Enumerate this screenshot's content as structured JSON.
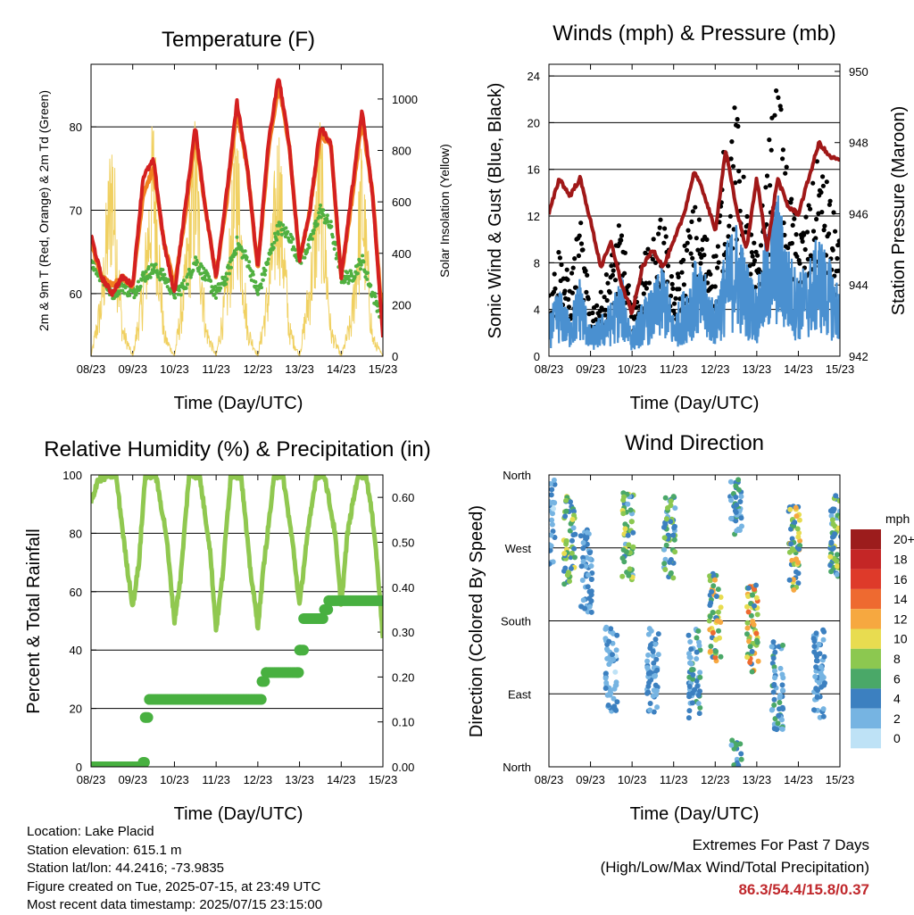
{
  "shared": {
    "xlabel": "Time (Day/UTC)",
    "xticks": [
      "08/23",
      "09/23",
      "10/23",
      "11/23",
      "12/23",
      "13/23",
      "14/23",
      "15/23"
    ]
  },
  "info": {
    "location": "Location: Lake Placid",
    "elevation": "Station elevation: 615.1 m",
    "latlon": "Station lat/lon: 44.2416; -73.9835",
    "created": "Figure created on Tue, 2025-07-15, at 23:49 UTC",
    "recent": "Most recent data timestamp: 2025/07/15 23:15:00"
  },
  "extremes": {
    "title": "Extremes For Past 7 Days",
    "subtitle": "(High/Low/Max Wind/Total Precipitation)",
    "values": "86.3/54.4/15.8/0.37",
    "value_color": "#c0282c"
  },
  "chart_data": [
    {
      "type": "line",
      "title": "Temperature (F)",
      "xlabel": "Time (Day/UTC)",
      "ylabel": "2m & 9m T (Red, Orange) & 2m Td (Green)",
      "ylabel_right": "Solar Insolation (Yellow)",
      "ylim": [
        52.5,
        87.5
      ],
      "yticks": [
        60,
        70,
        80
      ],
      "ylim_right": [
        0,
        1135
      ],
      "yticks_right": [
        0,
        200,
        400,
        600,
        800,
        1000
      ],
      "x": [
        8.0,
        8.25,
        8.5,
        8.75,
        9.0,
        9.25,
        9.5,
        9.75,
        10.0,
        10.25,
        10.5,
        10.75,
        11.0,
        11.25,
        11.5,
        11.75,
        12.0,
        12.25,
        12.5,
        12.75,
        13.0,
        13.25,
        13.5,
        13.75,
        14.0,
        14.25,
        14.5,
        14.75,
        15.0
      ],
      "series": [
        {
          "name": "2m T",
          "color": "#d42020",
          "values": [
            67,
            62,
            60,
            62,
            61,
            74,
            76,
            66,
            60,
            70,
            80,
            70,
            62,
            72,
            83,
            75,
            63,
            78,
            86,
            78,
            64,
            70,
            80,
            78,
            62,
            72,
            82,
            72,
            55
          ]
        },
        {
          "name": "9m T",
          "color": "#f08020",
          "values": [
            66,
            62,
            61,
            62,
            61,
            72,
            75,
            66,
            61,
            69,
            79,
            70,
            62,
            71,
            82,
            75,
            63,
            77,
            85,
            78,
            64,
            70,
            79,
            78,
            62,
            71,
            81,
            72,
            56
          ]
        },
        {
          "name": "2m Td",
          "color": "#50b040",
          "values": [
            64,
            62,
            60,
            61,
            60,
            62,
            63,
            62,
            60,
            61,
            64,
            62,
            60,
            62,
            66,
            64,
            60,
            64,
            68,
            67,
            64,
            66,
            70,
            68,
            62,
            62,
            64,
            60,
            57
          ]
        },
        {
          "name": "Solar",
          "color": "#f0d060",
          "values": [
            0,
            300,
            1000,
            150,
            0,
            350,
            1020,
            120,
            0,
            400,
            1000,
            150,
            0,
            350,
            1000,
            150,
            0,
            350,
            1000,
            150,
            0,
            380,
            1000,
            140,
            0,
            200,
            900,
            100,
            0
          ]
        }
      ]
    },
    {
      "type": "line",
      "title": "Winds (mph) & Pressure (mb)",
      "xlabel": "Time (Day/UTC)",
      "ylabel": "Sonic Wind & Gust (Blue, Black)",
      "ylabel_right": "Station Pressure (Maroon)",
      "ylim": [
        0,
        25
      ],
      "yticks": [
        0,
        4,
        8,
        12,
        16,
        20,
        24
      ],
      "ylim_right": [
        942,
        950.2
      ],
      "yticks_right": [
        942,
        944,
        946,
        948,
        950
      ],
      "x": [
        8.0,
        8.25,
        8.5,
        8.75,
        9.0,
        9.25,
        9.5,
        9.75,
        10.0,
        10.25,
        10.5,
        10.75,
        11.0,
        11.25,
        11.5,
        11.75,
        12.0,
        12.25,
        12.5,
        12.75,
        13.0,
        13.25,
        13.5,
        13.75,
        14.0,
        14.25,
        14.5,
        14.75,
        15.0
      ],
      "series": [
        {
          "name": "Wind",
          "color": "#4a90d0",
          "values": [
            3,
            5,
            3,
            6,
            2,
            3,
            4,
            6,
            2,
            4,
            5,
            7,
            3,
            5,
            7,
            6,
            4,
            8,
            10,
            7,
            5,
            9,
            12,
            8,
            6,
            7,
            9,
            7,
            5
          ]
        },
        {
          "name": "Gust",
          "color": "#000000",
          "values": [
            5,
            9,
            6,
            11,
            4,
            5,
            8,
            11,
            3,
            8,
            9,
            12,
            5,
            9,
            12,
            10,
            8,
            18,
            20,
            12,
            8,
            16,
            22,
            14,
            10,
            12,
            16,
            13,
            9
          ]
        },
        {
          "name": "Pressure",
          "color": "#a01818",
          "values": [
            946,
            947,
            946.5,
            947,
            945.8,
            944.5,
            945.2,
            944,
            943.2,
            944.5,
            945,
            944.5,
            945.2,
            946,
            947.2,
            946.5,
            945.5,
            947.8,
            946.2,
            945,
            947,
            945,
            947,
            946.2,
            946,
            947,
            948,
            947.6,
            947.5
          ]
        }
      ]
    },
    {
      "type": "line",
      "title": "Relative Humidity (%) & Precipitation (in)",
      "xlabel": "Time (Day/UTC)",
      "ylabel": "Percent & Total Rainfall",
      "ylim": [
        0,
        100
      ],
      "yticks": [
        0,
        20,
        40,
        60,
        80,
        100
      ],
      "ylim_right": [
        0,
        0.65
      ],
      "yticks_right": [
        "0.00",
        "0.10",
        "0.20",
        "0.30",
        "0.40",
        "0.50",
        "0.60"
      ],
      "series": [
        {
          "name": "RH",
          "color": "#90c850",
          "x": [
            8.0,
            8.15,
            8.4,
            8.6,
            8.85,
            9.0,
            9.15,
            9.3,
            9.55,
            9.8,
            10.0,
            10.15,
            10.35,
            10.6,
            10.85,
            11.0,
            11.15,
            11.35,
            11.6,
            11.8,
            12.0,
            12.15,
            12.4,
            12.6,
            12.85,
            13.0,
            13.15,
            13.4,
            13.6,
            13.85,
            14.0,
            14.15,
            14.4,
            14.6,
            14.8,
            15.0
          ],
          "values": [
            90,
            98,
            100,
            100,
            70,
            55,
            70,
            100,
            100,
            80,
            50,
            65,
            100,
            100,
            75,
            47,
            65,
            100,
            100,
            70,
            48,
            70,
            100,
            100,
            75,
            55,
            75,
            100,
            100,
            80,
            55,
            80,
            100,
            100,
            80,
            45
          ]
        },
        {
          "name": "Precip",
          "color": "#48b040",
          "x": [
            8.0,
            8.9,
            9.25,
            9.3,
            9.4,
            12.05,
            12.1,
            12.2,
            12.95,
            13.0,
            13.1,
            13.5,
            13.6,
            13.7,
            15.0
          ],
          "values": [
            0.0,
            0.0,
            0.01,
            0.11,
            0.15,
            0.15,
            0.19,
            0.21,
            0.21,
            0.26,
            0.33,
            0.33,
            0.35,
            0.37,
            0.37
          ]
        }
      ]
    },
    {
      "type": "scatter",
      "title": "Wind Direction",
      "xlabel": "Time (Day/UTC)",
      "ylabel": "Direction (Colored By Speed)",
      "yticks": [
        "North",
        "East",
        "South",
        "West",
        "North"
      ],
      "ylim": [
        0,
        360
      ],
      "legend_title": "mph",
      "legend_labels": [
        "20+",
        "18",
        "16",
        "14",
        "12",
        "10",
        "8",
        "6",
        "4",
        "2",
        "0"
      ],
      "legend_colors": [
        "#9c1c1c",
        "#c42626",
        "#de3a2a",
        "#ee6a30",
        "#f6a840",
        "#e8dc50",
        "#8cc850",
        "#4aa868",
        "#3c80c0",
        "#76b4e2",
        "#bee2f6"
      ],
      "legend_position": "right",
      "clusters": [
        {
          "x": 8.0,
          "dir": 300,
          "speed": 3
        },
        {
          "x": 8.5,
          "dir": 280,
          "speed": 9
        },
        {
          "x": 8.9,
          "dir": 245,
          "speed": 4
        },
        {
          "x": 9.5,
          "dir": 120,
          "speed": 3
        },
        {
          "x": 9.9,
          "dir": 285,
          "speed": 8
        },
        {
          "x": 10.5,
          "dir": 120,
          "speed": 4
        },
        {
          "x": 10.9,
          "dir": 285,
          "speed": 7
        },
        {
          "x": 11.5,
          "dir": 115,
          "speed": 5
        },
        {
          "x": 12.0,
          "dir": 185,
          "speed": 11
        },
        {
          "x": 12.5,
          "dir": 340,
          "speed": 5
        },
        {
          "x": 12.9,
          "dir": 170,
          "speed": 12
        },
        {
          "x": 13.5,
          "dir": 100,
          "speed": 5
        },
        {
          "x": 13.9,
          "dir": 270,
          "speed": 10
        },
        {
          "x": 14.5,
          "dir": 115,
          "speed": 4
        },
        {
          "x": 14.9,
          "dir": 290,
          "speed": 8
        }
      ]
    }
  ]
}
